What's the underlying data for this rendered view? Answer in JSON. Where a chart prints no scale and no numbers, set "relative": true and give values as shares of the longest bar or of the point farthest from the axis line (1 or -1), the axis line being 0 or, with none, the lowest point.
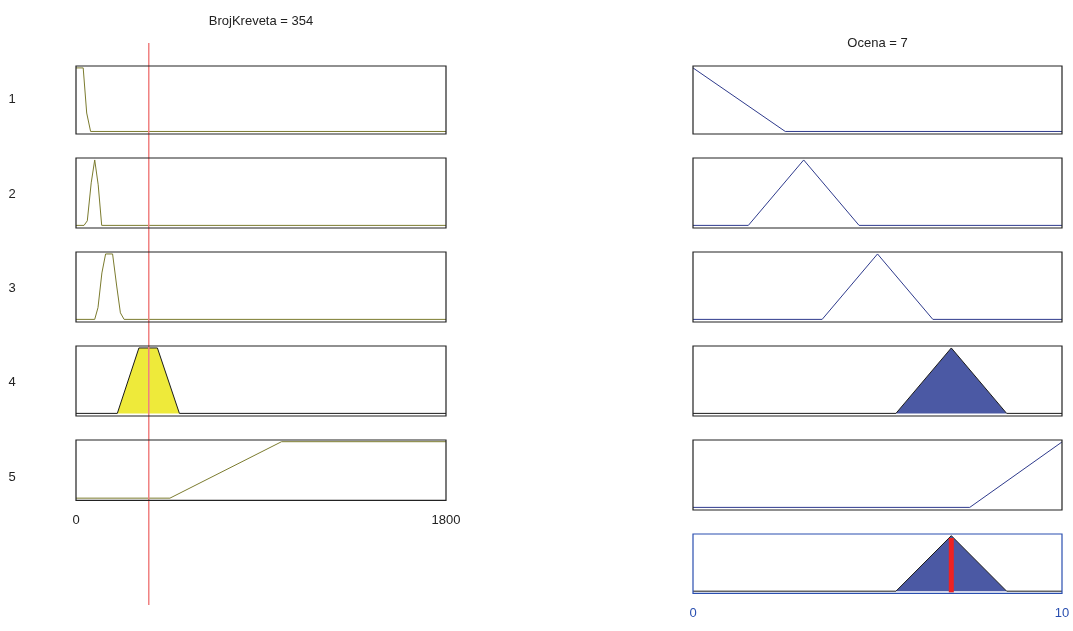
{
  "chart_data": [
    {
      "type": "line",
      "title": "BrojKreveta = 354",
      "ylabel": "1",
      "xlim": [
        0,
        1800
      ],
      "relative": true,
      "tick_labels": false,
      "series": [
        {
          "color": "#7b7b2e",
          "x": [
            0,
            35,
            52,
            71,
            1800
          ],
          "values": [
            1,
            1,
            0.29,
            0,
            0
          ]
        }
      ],
      "ref_lines": [
        {
          "axis": "x",
          "value": 354,
          "color": "#f08080"
        }
      ]
    },
    {
      "type": "line",
      "ylabel": "2",
      "xlim": [
        0,
        1800
      ],
      "relative": true,
      "tick_labels": false,
      "series": [
        {
          "color": "#7b7b2e",
          "x": [
            0,
            39,
            55,
            74,
            91,
            108,
            125,
            1800
          ],
          "values": [
            0,
            0,
            0.07,
            0.65,
            1,
            0.62,
            0,
            0
          ]
        }
      ],
      "ref_lines": [
        {
          "axis": "x",
          "value": 354,
          "color": "#f08080"
        }
      ]
    },
    {
      "type": "line",
      "ylabel": "3",
      "xlim": [
        0,
        1800
      ],
      "relative": true,
      "tick_labels": false,
      "series": [
        {
          "color": "#7b7b2e",
          "x": [
            0,
            91,
            107,
            126,
            144,
            178,
            198,
            216,
            234,
            1800
          ],
          "values": [
            0,
            0,
            0.18,
            0.71,
            1,
            1,
            0.51,
            0.1,
            0,
            0
          ]
        }
      ],
      "ref_lines": [
        {
          "axis": "x",
          "value": 354,
          "color": "#f08080"
        }
      ]
    },
    {
      "type": "area",
      "ylabel": "4",
      "xlim": [
        0,
        1800
      ],
      "relative": true,
      "tick_labels": false,
      "series": [
        {
          "color": "#eeea3a",
          "x": [
            0,
            201,
            306,
            396,
            503,
            1800
          ],
          "values": [
            0,
            0,
            1,
            1,
            0,
            0
          ]
        }
      ],
      "ref_lines": [
        {
          "axis": "x",
          "value": 354,
          "color": "#f08080"
        }
      ]
    },
    {
      "type": "line",
      "ylabel": "5",
      "xlim": [
        0,
        1800
      ],
      "xticks": [
        0,
        1800
      ],
      "relative": true,
      "tick_labels": "x",
      "series": [
        {
          "color": "#7b7b2e",
          "x": [
            0,
            457,
            1000,
            1800
          ],
          "values": [
            0,
            0,
            1,
            1
          ]
        }
      ],
      "ref_lines": [
        {
          "axis": "x",
          "value": 354,
          "color": "#f08080"
        }
      ]
    },
    {
      "type": "line",
      "title": "Ocena = 7",
      "xlim": [
        0,
        10
      ],
      "relative": true,
      "tick_labels": false,
      "series": [
        {
          "color": "#2e3a8c",
          "x": [
            0,
            2.5,
            10
          ],
          "values": [
            1,
            0,
            0
          ]
        }
      ]
    },
    {
      "type": "line",
      "xlim": [
        0,
        10
      ],
      "relative": true,
      "tick_labels": false,
      "series": [
        {
          "color": "#2e3a8c",
          "x": [
            0,
            1.5,
            3,
            4.5,
            10
          ],
          "values": [
            0,
            0,
            1,
            0,
            0
          ]
        }
      ]
    },
    {
      "type": "line",
      "xlim": [
        0,
        10
      ],
      "relative": true,
      "tick_labels": false,
      "series": [
        {
          "color": "#2e3a8c",
          "x": [
            0,
            3.5,
            5,
            6.5,
            10
          ],
          "values": [
            0,
            0,
            1,
            0,
            0
          ]
        }
      ]
    },
    {
      "type": "area",
      "xlim": [
        0,
        10
      ],
      "relative": true,
      "tick_labels": false,
      "series": [
        {
          "color": "#4b59a4",
          "x": [
            0,
            5.5,
            7,
            8.5,
            10
          ],
          "values": [
            0,
            0,
            1,
            0,
            0
          ]
        }
      ]
    },
    {
      "type": "line",
      "xlim": [
        0,
        10
      ],
      "relative": true,
      "tick_labels": false,
      "series": [
        {
          "color": "#2e3a8c",
          "x": [
            0,
            7.5,
            10
          ],
          "values": [
            0,
            0,
            1
          ]
        }
      ]
    },
    {
      "type": "area",
      "xlim": [
        0,
        10
      ],
      "xticks": [
        0,
        10
      ],
      "relative": true,
      "tick_labels": "x",
      "series": [
        {
          "color": "#4b59a4",
          "x": [
            0,
            5.5,
            7,
            8.5,
            10
          ],
          "values": [
            0,
            0,
            1,
            0,
            0
          ]
        }
      ],
      "ref_lines": [
        {
          "axis": "x",
          "value": 7,
          "color": "#ee2222"
        }
      ]
    }
  ]
}
